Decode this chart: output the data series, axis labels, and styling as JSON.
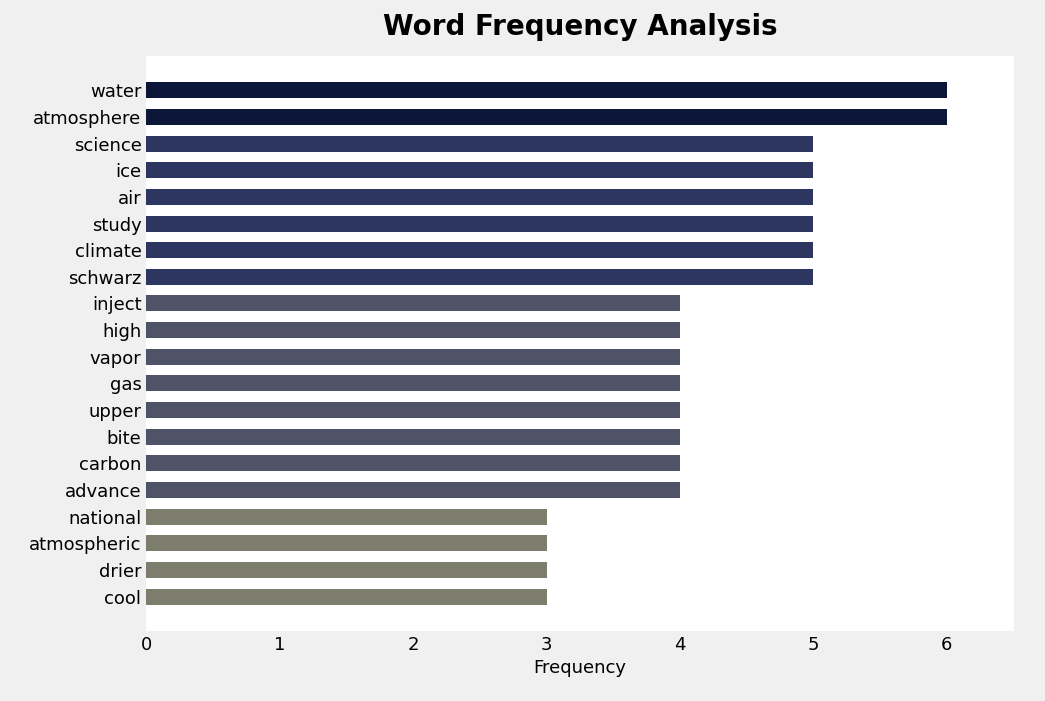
{
  "title": "Word Frequency Analysis",
  "xlabel": "Frequency",
  "categories": [
    "cool",
    "drier",
    "atmospheric",
    "national",
    "advance",
    "carbon",
    "bite",
    "upper",
    "gas",
    "vapor",
    "high",
    "inject",
    "schwarz",
    "climate",
    "study",
    "air",
    "ice",
    "science",
    "atmosphere",
    "water"
  ],
  "values": [
    3,
    3,
    3,
    3,
    4,
    4,
    4,
    4,
    4,
    4,
    4,
    4,
    5,
    5,
    5,
    5,
    5,
    5,
    6,
    6
  ],
  "colors": [
    "#7d7d6e",
    "#7d7d6e",
    "#7d7d6e",
    "#7d7d6e",
    "#4e5368",
    "#4e5368",
    "#4e5368",
    "#4e5368",
    "#4e5368",
    "#4e5368",
    "#4e5368",
    "#4e5368",
    "#2d3561",
    "#2d3561",
    "#2d3561",
    "#2d3561",
    "#2d3561",
    "#2d3561",
    "#0b1638",
    "#0b1638"
  ],
  "xlim": [
    0,
    6.5
  ],
  "xticks": [
    0,
    1,
    2,
    3,
    4,
    5,
    6
  ],
  "background_color": "#f5f5f5",
  "plot_background": "#f5f5f5",
  "title_fontsize": 20,
  "label_fontsize": 13,
  "tick_fontsize": 13,
  "bar_height": 0.6
}
